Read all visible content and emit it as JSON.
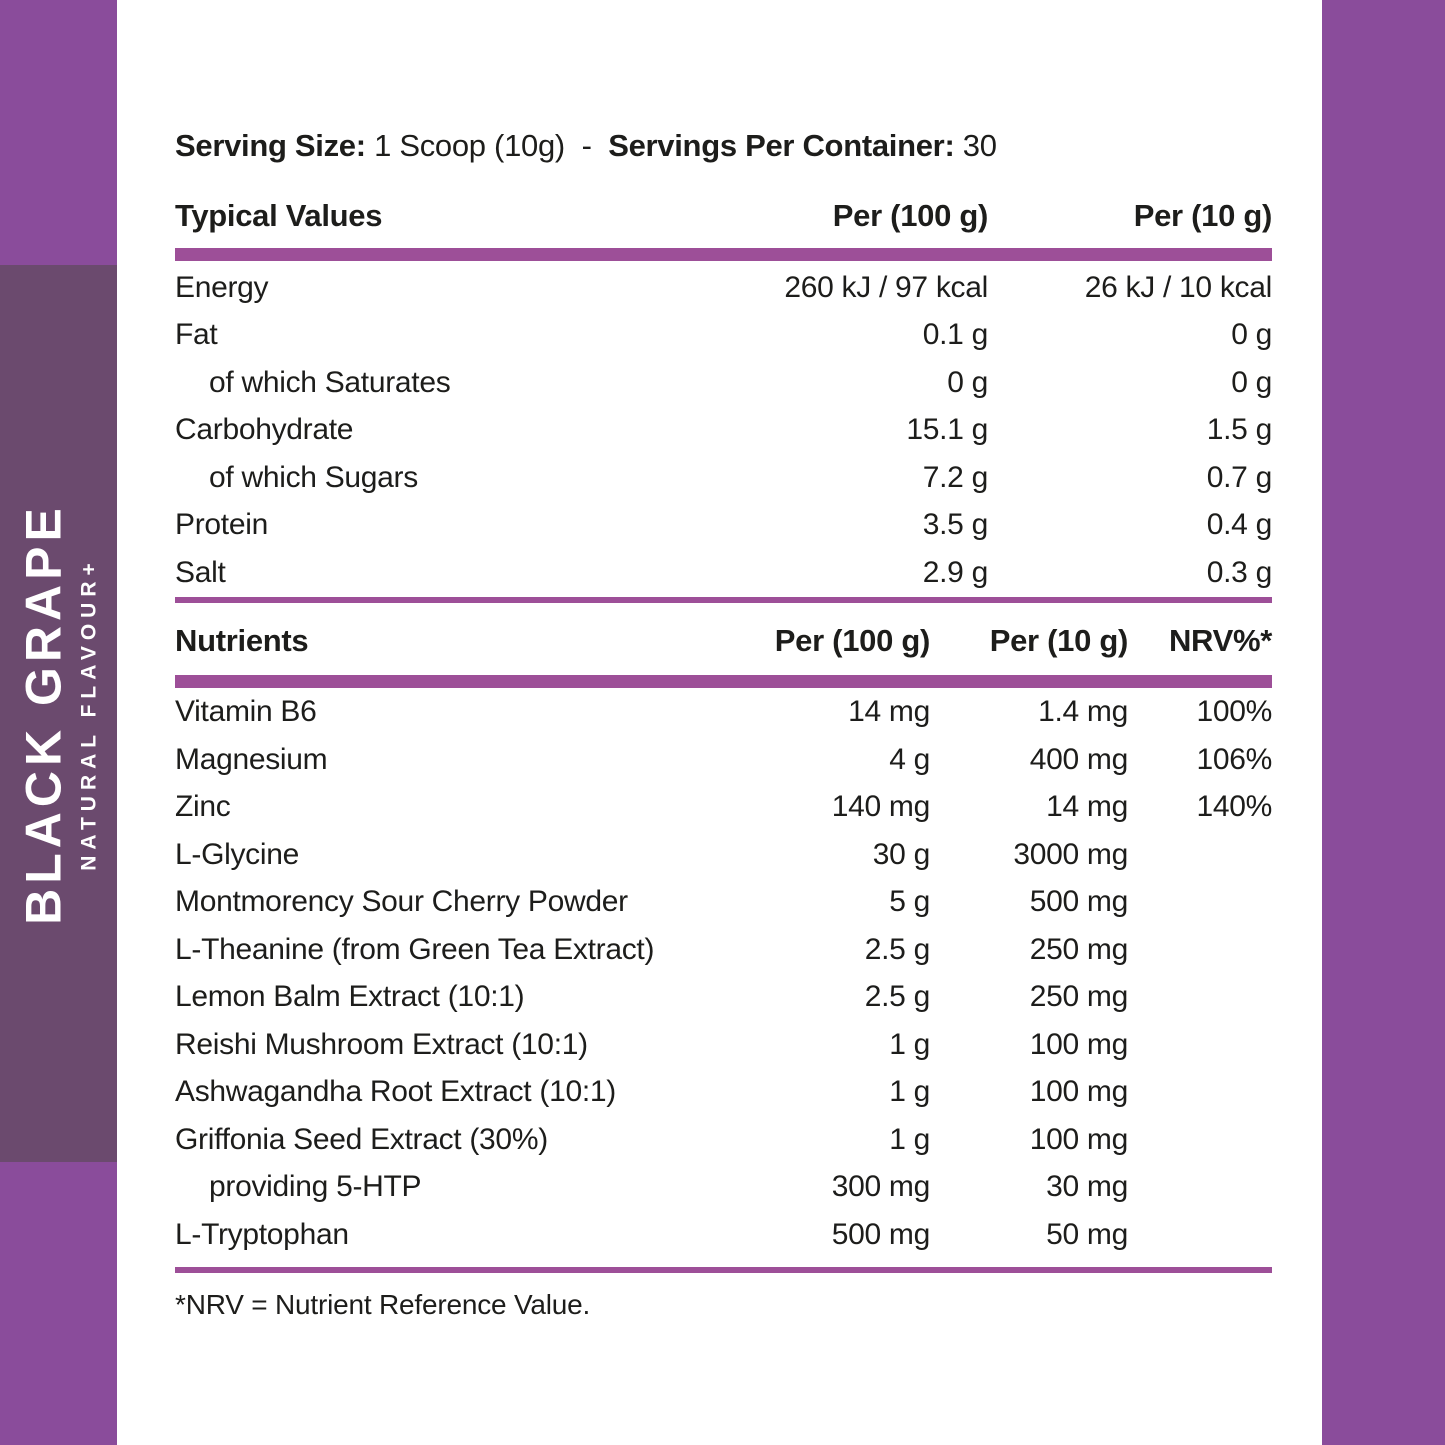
{
  "colors": {
    "accent_purple": "#8a4c9b",
    "panel_purple": "#6b4a6e",
    "bar_purple": "#9d4f98",
    "text": "#1d1d1b"
  },
  "sidebar": {
    "flavour_name": "BLACK GRAPE",
    "flavour_sub": "NATURAL FLAVOUR+"
  },
  "serving": {
    "label1": "Serving Size:",
    "value1": " 1 Scoop (10g)",
    "separator": "  -  ",
    "label2": "Servings Per Container:",
    "value2": " 30"
  },
  "section1": {
    "title": "Typical Values",
    "col_per100": "Per (100 g)",
    "col_per10": "Per (10 g)",
    "rows": [
      {
        "label": "Energy",
        "v100": "260 kJ / 97 kcal",
        "v10": "26 kJ / 10 kcal"
      },
      {
        "label": "Fat",
        "v100": "0.1 g",
        "v10": "0 g"
      },
      {
        "label": "of which Saturates",
        "indent": true,
        "v100": "0 g",
        "v10": "0 g"
      },
      {
        "label": "Carbohydrate",
        "v100": "15.1 g",
        "v10": "1.5 g"
      },
      {
        "label": "of which Sugars",
        "indent": true,
        "v100": "7.2 g",
        "v10": "0.7 g"
      },
      {
        "label": "Protein",
        "v100": "3.5 g",
        "v10": "0.4 g"
      },
      {
        "label": "Salt",
        "v100": "2.9 g",
        "v10": "0.3 g"
      }
    ]
  },
  "section2": {
    "title": "Nutrients",
    "col_per100": "Per (100 g)",
    "col_per10": "Per (10 g)",
    "col_nrv": "NRV%*",
    "rows": [
      {
        "label": "Vitamin B6",
        "v100": "14 mg",
        "v10": "1.4 mg",
        "nrv": "100%"
      },
      {
        "label": "Magnesium",
        "v100": "4 g",
        "v10": "400 mg",
        "nrv": "106%"
      },
      {
        "label": "Zinc",
        "v100": "140 mg",
        "v10": "14 mg",
        "nrv": "140%"
      },
      {
        "label": "L-Glycine",
        "v100": "30 g",
        "v10": "3000 mg",
        "nrv": ""
      },
      {
        "label": "Montmorency Sour Cherry Powder",
        "v100": "5 g",
        "v10": "500 mg",
        "nrv": ""
      },
      {
        "label": "L-Theanine (from Green Tea Extract)",
        "v100": "2.5 g",
        "v10": "250 mg",
        "nrv": ""
      },
      {
        "label": "Lemon Balm Extract (10:1)",
        "v100": "2.5 g",
        "v10": "250 mg",
        "nrv": ""
      },
      {
        "label": "Reishi Mushroom Extract (10:1)",
        "v100": "1 g",
        "v10": "100 mg",
        "nrv": ""
      },
      {
        "label": "Ashwagandha Root Extract (10:1)",
        "v100": "1 g",
        "v10": "100 mg",
        "nrv": ""
      },
      {
        "label": "Griffonia Seed Extract (30%)",
        "v100": "1 g",
        "v10": "100 mg",
        "nrv": ""
      },
      {
        "label": "providing 5-HTP",
        "indent": true,
        "v100": "300 mg",
        "v10": "30 mg",
        "nrv": ""
      },
      {
        "label": "L-Tryptophan",
        "v100": "500 mg",
        "v10": "50 mg",
        "nrv": ""
      }
    ]
  },
  "footnote": "*NRV = Nutrient Reference Value."
}
